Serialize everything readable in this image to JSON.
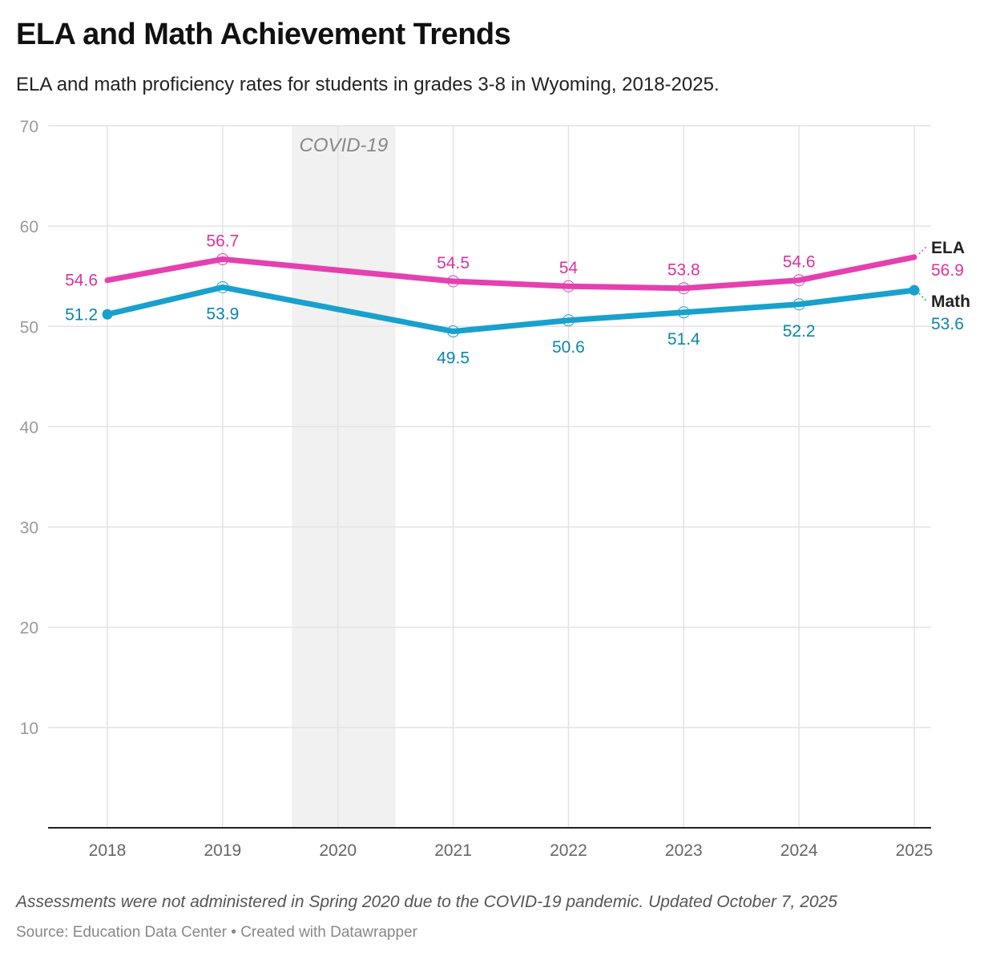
{
  "title": "ELA and Math Achievement Trends",
  "subtitle": "ELA and math proficiency rates for students in grades 3-8 in Wyoming, 2018-2025.",
  "note": "Assessments were not administered in Spring 2020 due to the COVID-19 pandemic. Updated October 7, 2025",
  "source": "Source: Education Data Center • Created with Datawrapper",
  "chart_data": {
    "type": "line",
    "x": [
      2018,
      2019,
      2020,
      2021,
      2022,
      2023,
      2024,
      2025
    ],
    "ylim": [
      0,
      70
    ],
    "yticks": [
      10,
      20,
      30,
      40,
      50,
      60,
      70
    ],
    "grid": true,
    "xlabel": "",
    "ylabel": "",
    "annotations": [
      {
        "text": "COVID-19",
        "x_range": [
          2019.6,
          2020.5
        ]
      }
    ],
    "series": [
      {
        "name": "ELA",
        "color": "#e540b0",
        "label_color": "#d9349f",
        "values": [
          54.6,
          56.7,
          null,
          54.5,
          54,
          53.8,
          54.6,
          56.9
        ],
        "labels": [
          "54.6",
          "56.7",
          "",
          "54.5",
          "54",
          "53.8",
          "54.6",
          "56.9"
        ],
        "label_pos": "above"
      },
      {
        "name": "Math",
        "color": "#18a1cd",
        "label_color": "#0b86a8",
        "values": [
          51.2,
          53.9,
          null,
          49.5,
          50.6,
          51.4,
          52.2,
          53.6
        ],
        "labels": [
          "51.2",
          "53.9",
          "",
          "49.5",
          "50.6",
          "51.4",
          "52.2",
          "53.6"
        ],
        "label_pos": "below"
      }
    ]
  }
}
